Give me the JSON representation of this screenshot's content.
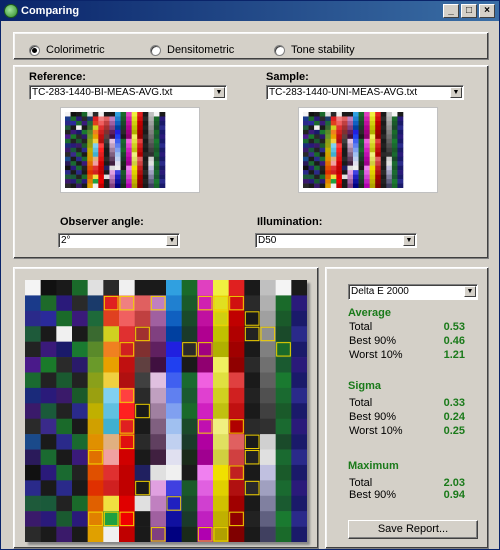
{
  "window": {
    "title": "Comparing"
  },
  "mode": {
    "options": [
      {
        "label": "Colorimetric",
        "selected": true
      },
      {
        "label": "Densitometric",
        "selected": false
      },
      {
        "label": "Tone stability",
        "selected": false
      }
    ]
  },
  "reference": {
    "label": "Reference:",
    "file": "TC-283-1440-BI-MEAS-AVG.txt"
  },
  "sample": {
    "label": "Sample:",
    "file": "TC-283-1440-UNI-MEAS-AVG.txt"
  },
  "observer": {
    "label": "Observer angle:",
    "value": "2°"
  },
  "illumination": {
    "label": "Illumination:",
    "value": "D50"
  },
  "metric": {
    "value": "Delta E 2000"
  },
  "stats": {
    "average": {
      "title": "Average",
      "rows": [
        {
          "label": "Total",
          "value": "0.53"
        },
        {
          "label": "Best 90%",
          "value": "0.46"
        },
        {
          "label": "Worst 10%",
          "value": "1.21"
        }
      ]
    },
    "sigma": {
      "title": "Sigma",
      "rows": [
        {
          "label": "Total",
          "value": "0.33"
        },
        {
          "label": "Best 90%",
          "value": "0.24"
        },
        {
          "label": "Worst 10%",
          "value": "0.25"
        }
      ]
    },
    "maximum": {
      "title": "Maximum",
      "rows": [
        {
          "label": "Total",
          "value": "2.03"
        },
        {
          "label": "Best 90%",
          "value": "0.94"
        }
      ]
    }
  },
  "save_button": "Save Report...",
  "colors": {
    "highlight": "#f0d000",
    "stat_value": "#1a7a1a",
    "title_start": "#0a246a",
    "title_end": "#3a6ea5"
  },
  "patch_columns": [
    [
      "#f4f4f4",
      "#1a3a8a",
      "#2a2a8a",
      "#1e5a3a",
      "#222",
      "#4a1a8a",
      "#1a6a30",
      "#1a2a7a",
      "#3a1a6a",
      "#2a2a2a",
      "#1a4a8a",
      "#2a1a5a",
      "#111",
      "#2a2a8a",
      "#1e5a3a",
      "#3a1a6a",
      "#2a2a2a"
    ],
    [
      "#111",
      "#1e6a2a",
      "#2a2a9a",
      "#1a1a1a",
      "#3a1a7a",
      "#1a7a2a",
      "#222",
      "#2a1a7a",
      "#1a5a3a",
      "#3a2a8a",
      "#1a1a1a",
      "#1a6a30",
      "#2a1a7a",
      "#1a1a1a",
      "#1a5a3a",
      "#2a1a7a",
      "#1a1a1a"
    ],
    [
      "#1a1a1a",
      "#2a1a7a",
      "#1a6a2a",
      "#f0f0f0",
      "#1a1a6a",
      "#2a2a2a",
      "#1a5a30",
      "#3a1a6a",
      "#222",
      "#1a6a2a",
      "#2a2a8a",
      "#1a1a1a",
      "#1a6a30",
      "#2a2a8a",
      "#222",
      "#1a5a30",
      "#3a1a6a"
    ],
    [
      "#1a6a2a",
      "#2a2a2a",
      "#3a1a7a",
      "#1a1a1a",
      "#1a7a30",
      "#2a1a6a",
      "#222",
      "#1a5a2a",
      "#2a2a8a",
      "#1a1a1a",
      "#1a6a30",
      "#3a1a7a",
      "#222",
      "#1a1a1a",
      "#1a6a2a",
      "#2a1a7a",
      "#1a1a1a"
    ],
    [
      "#e0e0e0",
      "#1a3a6a",
      "#1e6a3a",
      "#3a6a30",
      "#5a8a2a",
      "#6a9a2a",
      "#8aa01a",
      "#9aa010",
      "#c0b000",
      "#d0a000",
      "#e09000",
      "#e07000",
      "#e05000",
      "#e03000",
      "#e06000",
      "#e08000",
      "#e0a000"
    ],
    [
      "#2a2a2a",
      "#e02020",
      "#e04020",
      "#d0d020",
      "#f08020",
      "#e8a000",
      "#f0d040",
      "#80d0f0",
      "#60c0e0",
      "#40b0d0",
      "#e0b080",
      "#f0a0a0",
      "#e03030",
      "#d02020",
      "#f0e040",
      "#20a040",
      "#f0f0f0"
    ],
    [
      "#f0f0f0",
      "#f08080",
      "#f06060",
      "#e03030",
      "#d02020",
      "#c01010",
      "#b01010",
      "#ff4040",
      "#ff2020",
      "#e02020",
      "#e01010",
      "#d00000",
      "#c00000",
      "#c00000",
      "#e00000",
      "#f00000",
      "#c00000"
    ],
    [
      "#1a1a1a",
      "#e06060",
      "#c04040",
      "#a03030",
      "#803030",
      "#604040",
      "#404040",
      "#2a2a2a",
      "#1a1a1a",
      "#1a1a1a",
      "#2a2a2a",
      "#1a1a1a",
      "#202060",
      "#1a1a1a",
      "#e0e0e0",
      "#1a1a1a",
      "#1a1a1a"
    ],
    [
      "#1a1a1a",
      "#c080c0",
      "#a060a0",
      "#804080",
      "#602060",
      "#401040",
      "#e0c0e0",
      "#c0a0c0",
      "#a080a0",
      "#806080",
      "#604060",
      "#402040",
      "#e0e0e0",
      "#e0a0e0",
      "#c080c0",
      "#a060a0",
      "#804080"
    ],
    [
      "#30a0e0",
      "#2080d0",
      "#1060c0",
      "#0040a0",
      "#2020e0",
      "#2040f0",
      "#4060f0",
      "#6080f0",
      "#80a0f0",
      "#a0c0f0",
      "#c0d0f0",
      "#e0e0f0",
      "#f0f0f0",
      "#4040e0",
      "#2020c0",
      "#1010a0",
      "#000080"
    ],
    [
      "#1a6a2a",
      "#1a5a2a",
      "#1a4a2a",
      "#1a3a2a",
      "#2a2a2a",
      "#1a1a1a",
      "#1a6a30",
      "#1a5a30",
      "#1a6a2a",
      "#1a4a2a",
      "#1a3a2a",
      "#1a2a1a",
      "#1a1a1a",
      "#1a5a2a",
      "#1a4a2a",
      "#1a3a2a",
      "#1a2a1a"
    ],
    [
      "#e040c0",
      "#d020b0",
      "#c010a0",
      "#b00090",
      "#a00080",
      "#900070",
      "#f060e0",
      "#e040d0",
      "#d020c0",
      "#c010b0",
      "#b000a0",
      "#a00090",
      "#f080f0",
      "#e060e0",
      "#d040d0",
      "#c020c0",
      "#b000b0"
    ],
    [
      "#f0f040",
      "#e0e020",
      "#d0d010",
      "#c0c000",
      "#b0b000",
      "#f0f060",
      "#e0e040",
      "#d0d020",
      "#c0c010",
      "#f0f080",
      "#e0e060",
      "#d0d040",
      "#f0e000",
      "#e0d000",
      "#d0c000",
      "#c0b000",
      "#b0a000"
    ],
    [
      "#e02020",
      "#d01010",
      "#c00000",
      "#b00000",
      "#a00000",
      "#900000",
      "#e04040",
      "#d02020",
      "#c01010",
      "#b00000",
      "#e06060",
      "#d04040",
      "#c02020",
      "#b01010",
      "#a00000",
      "#900000",
      "#800000"
    ],
    [
      "#1a1a1a",
      "#2a2a2a",
      "#1a1a1a",
      "#222",
      "#1a1a1a",
      "#2a2a2a",
      "#1a1a1a",
      "#222",
      "#1a1a1a",
      "#2a2a2a",
      "#1a1a1a",
      "#222",
      "#1a1a1a",
      "#2a2a2a",
      "#1a1a1a",
      "#222",
      "#1a1a1a"
    ],
    [
      "#c0c0c0",
      "#b0b0b0",
      "#a0a0a0",
      "#909090",
      "#808080",
      "#707070",
      "#606060",
      "#505050",
      "#404040",
      "#303030",
      "#d0d0d0",
      "#e0e0e0",
      "#c0c0e0",
      "#a0a0c0",
      "#8080a0",
      "#606080",
      "#404060"
    ],
    [
      "#f4f4f4",
      "#1a6a2a",
      "#1a5a2a",
      "#1a4a2a",
      "#1a6a2a",
      "#1a5a30",
      "#1a7a30",
      "#1a6a30",
      "#1a5a2a",
      "#1a6a30",
      "#1a4a2a",
      "#1a6a30",
      "#1a5a2a",
      "#1a6a30",
      "#1a5a30",
      "#1a7a30",
      "#1a6a2a"
    ],
    [
      "#1a1a1a",
      "#2a1a7a",
      "#1a1a6a",
      "#2a2a8a",
      "#1a1a6a",
      "#2a1a7a",
      "#1a1a6a",
      "#2a2a8a",
      "#1a1a6a",
      "#2a1a7a",
      "#1a1a6a",
      "#2a2a8a",
      "#1a1a6a",
      "#2a1a7a",
      "#1a1a6a",
      "#2a2a8a",
      "#1a1a6a"
    ]
  ],
  "highlighted_patches": [
    [
      5,
      1
    ],
    [
      6,
      1
    ],
    [
      8,
      1
    ],
    [
      11,
      1
    ],
    [
      12,
      1
    ],
    [
      13,
      1
    ],
    [
      12,
      2
    ],
    [
      7,
      3
    ],
    [
      14,
      2
    ],
    [
      14,
      3
    ],
    [
      15,
      3
    ],
    [
      16,
      4
    ],
    [
      6,
      4
    ],
    [
      10,
      4
    ],
    [
      11,
      4
    ],
    [
      6,
      7
    ],
    [
      7,
      8
    ],
    [
      6,
      9
    ],
    [
      11,
      9
    ],
    [
      13,
      9
    ],
    [
      6,
      10
    ],
    [
      14,
      10
    ],
    [
      4,
      11
    ],
    [
      14,
      11
    ],
    [
      13,
      12
    ],
    [
      14,
      13
    ],
    [
      7,
      13
    ],
    [
      9,
      14
    ],
    [
      4,
      15
    ],
    [
      5,
      15
    ],
    [
      6,
      15
    ],
    [
      13,
      15
    ],
    [
      8,
      16
    ],
    [
      11,
      16
    ],
    [
      12,
      16
    ]
  ]
}
